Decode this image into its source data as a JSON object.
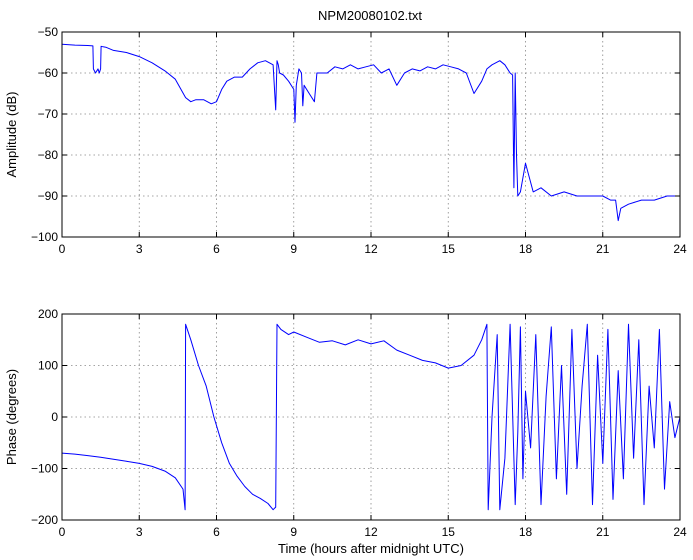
{
  "figure": {
    "title": "NPM20080102.txt",
    "line_color": "#0000ff",
    "background": "#ffffff"
  },
  "chart_data": [
    {
      "type": "line",
      "name": "amplitude",
      "title": "NPM20080102.txt",
      "xlabel": "",
      "ylabel": "Amplitude (dB)",
      "xlim": [
        0,
        24
      ],
      "ylim": [
        -100,
        -50
      ],
      "xticks": [
        0,
        3,
        6,
        9,
        12,
        15,
        18,
        21,
        24
      ],
      "yticks": [
        -100,
        -90,
        -80,
        -70,
        -60,
        -50
      ],
      "xtick_labels": [
        "0",
        "3",
        "6",
        "9",
        "12",
        "15",
        "18",
        "21",
        "24"
      ],
      "ytick_labels": [
        "−100",
        "−90",
        "−80",
        "−70",
        "−60",
        "−50"
      ],
      "grid": true,
      "series": [
        {
          "color": "#0000ff",
          "x": [
            0,
            0.5,
            1.0,
            1.2,
            1.22,
            1.3,
            1.4,
            1.45,
            1.5,
            1.52,
            1.6,
            1.7,
            2.0,
            2.5,
            3.0,
            3.5,
            4.0,
            4.4,
            4.8,
            5.0,
            5.2,
            5.5,
            5.8,
            6.0,
            6.2,
            6.4,
            6.7,
            7.0,
            7.3,
            7.6,
            7.9,
            8.2,
            8.3,
            8.35,
            8.4,
            8.45,
            8.6,
            8.8,
            9.0,
            9.05,
            9.1,
            9.2,
            9.3,
            9.35,
            9.4,
            9.6,
            9.8,
            9.9,
            10.0,
            10.3,
            10.6,
            10.9,
            11.2,
            11.5,
            11.8,
            12.1,
            12.4,
            12.7,
            13.0,
            13.3,
            13.6,
            13.9,
            14.2,
            14.5,
            14.8,
            15.1,
            15.4,
            15.7,
            16.0,
            16.3,
            16.5,
            16.7,
            17.0,
            17.2,
            17.4,
            17.5,
            17.55,
            17.6,
            17.65,
            17.7,
            17.8,
            18.0,
            18.3,
            18.6,
            19.0,
            19.5,
            20.0,
            20.5,
            21.0,
            21.3,
            21.5,
            21.6,
            21.7,
            22.0,
            22.5,
            23.0,
            23.5,
            24.0
          ],
          "y": [
            -53,
            -53.2,
            -53.3,
            -53.4,
            -59,
            -60,
            -59,
            -60,
            -59,
            -53.5,
            -53.6,
            -53.7,
            -54.5,
            -55,
            -56,
            -57.5,
            -59.5,
            -61.5,
            -66,
            -67,
            -66.5,
            -66.5,
            -67.5,
            -67,
            -64,
            -62,
            -61,
            -61,
            -59,
            -57.5,
            -57,
            -58,
            -69,
            -57,
            -58,
            -60,
            -60.5,
            -62,
            -64,
            -72,
            -63,
            -59,
            -60,
            -68,
            -63,
            -65,
            -67,
            -60,
            -60,
            -60,
            -58.5,
            -59,
            -58,
            -59,
            -58.5,
            -58,
            -60,
            -59,
            -63,
            -60,
            -59,
            -59.5,
            -58.5,
            -59,
            -58,
            -58.5,
            -59,
            -60,
            -65,
            -62,
            -59,
            -58,
            -57,
            -58,
            -60,
            -60.5,
            -88,
            -60,
            -80,
            -90,
            -89,
            -82,
            -89,
            -88,
            -90,
            -89,
            -90,
            -90,
            -90,
            -91,
            -91,
            -96,
            -93,
            -92,
            -91,
            -91,
            -90,
            -90
          ]
        }
      ]
    },
    {
      "type": "line",
      "name": "phase",
      "title": "",
      "xlabel": "Time (hours after midnight UTC)",
      "ylabel": "Phase (degrees)",
      "xlim": [
        0,
        24
      ],
      "ylim": [
        -200,
        200
      ],
      "xticks": [
        0,
        3,
        6,
        9,
        12,
        15,
        18,
        21,
        24
      ],
      "yticks": [
        -200,
        -100,
        0,
        100,
        200
      ],
      "xtick_labels": [
        "0",
        "3",
        "6",
        "9",
        "12",
        "15",
        "18",
        "21",
        "24"
      ],
      "ytick_labels": [
        "−200",
        "−100",
        "0",
        "100",
        "200"
      ],
      "grid": true,
      "series": [
        {
          "color": "#0000ff",
          "x": [
            0,
            0.5,
            1.0,
            1.5,
            2.0,
            2.5,
            3.0,
            3.5,
            4.0,
            4.4,
            4.7,
            4.78,
            4.8,
            5.0,
            5.3,
            5.6,
            5.9,
            6.2,
            6.5,
            6.8,
            7.1,
            7.4,
            7.7,
            8.0,
            8.2,
            8.3,
            8.35,
            8.5,
            8.8,
            9.0,
            9.5,
            10.0,
            10.5,
            11.0,
            11.5,
            12.0,
            12.5,
            13.0,
            13.5,
            14.0,
            14.5,
            15.0,
            15.5,
            16.0,
            16.3,
            16.5,
            16.55,
            16.7,
            16.9,
            17.0,
            17.2,
            17.4,
            17.6,
            17.7,
            17.8,
            17.9,
            18.0,
            18.2,
            18.4,
            18.6,
            18.8,
            19.0,
            19.2,
            19.4,
            19.6,
            19.8,
            20.0,
            20.2,
            20.4,
            20.6,
            20.8,
            21.0,
            21.2,
            21.4,
            21.6,
            21.8,
            22.0,
            22.2,
            22.4,
            22.6,
            22.8,
            23.0,
            23.2,
            23.4,
            23.6,
            23.8,
            24.0
          ],
          "y": [
            -70,
            -72,
            -75,
            -78,
            -82,
            -86,
            -90,
            -96,
            -105,
            -118,
            -140,
            -180,
            180,
            150,
            100,
            60,
            0,
            -50,
            -90,
            -115,
            -135,
            -150,
            -158,
            -168,
            -180,
            -175,
            180,
            170,
            160,
            165,
            155,
            145,
            148,
            140,
            150,
            142,
            148,
            130,
            120,
            110,
            105,
            95,
            100,
            120,
            150,
            180,
            -180,
            0,
            160,
            -180,
            -80,
            180,
            -170,
            -30,
            175,
            -120,
            50,
            -60,
            160,
            -170,
            40,
            175,
            -120,
            100,
            -150,
            170,
            -100,
            60,
            180,
            -170,
            120,
            -90,
            170,
            -160,
            90,
            -120,
            180,
            -80,
            150,
            -170,
            60,
            -60,
            170,
            -140,
            30,
            -40,
            0
          ]
        }
      ]
    }
  ]
}
